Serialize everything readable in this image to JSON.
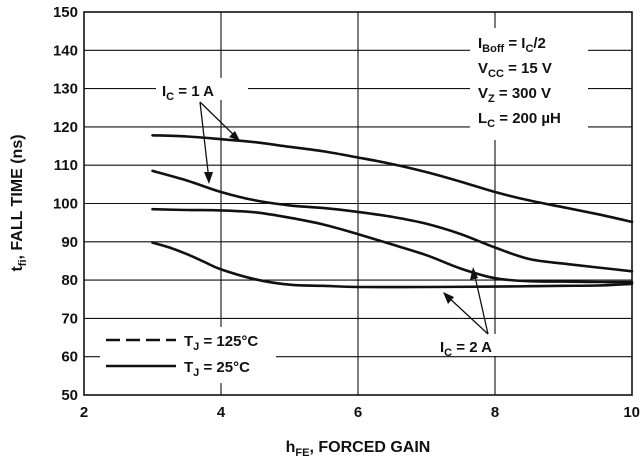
{
  "chart_data": {
    "type": "line",
    "title": "",
    "xlabel": {
      "main": "h",
      "sub": "FE",
      "rest": ", FORCED GAIN"
    },
    "ylabel": {
      "main": "t",
      "sub": "fi",
      "rest": ", FALL TIME (ns)"
    },
    "xlim": [
      2,
      10
    ],
    "ylim": [
      50,
      150
    ],
    "x_ticks": [
      "2",
      "4",
      "6",
      "8",
      "10"
    ],
    "y_ticks": [
      "50",
      "60",
      "70",
      "80",
      "90",
      "100",
      "110",
      "120",
      "130",
      "140",
      "150"
    ],
    "grid": true,
    "series": [
      {
        "style": "solid",
        "ic": "1 A",
        "x": [
          3,
          3.5,
          4,
          4.5,
          5,
          5.5,
          6,
          6.5,
          7,
          7.5,
          8,
          8.5,
          9,
          9.5,
          10
        ],
        "y": [
          117.8,
          117.5,
          116.8,
          116,
          114.8,
          113.6,
          112,
          110.3,
          108.2,
          105.7,
          103,
          100.8,
          99,
          97.2,
          95.2
        ]
      },
      {
        "style": "solid",
        "ic": "1 A",
        "x": [
          3,
          3.5,
          4,
          4.5,
          5,
          5.5,
          6,
          6.5,
          7,
          7.5,
          8,
          8.5,
          9,
          9.5,
          10
        ],
        "y": [
          108.5,
          106,
          103,
          100.8,
          99.5,
          98.8,
          97.8,
          96.5,
          94.7,
          92,
          88.5,
          85.5,
          84.3,
          83.3,
          82.3
        ]
      },
      {
        "style": "solid",
        "ic": "2 A",
        "x": [
          3,
          3.5,
          4,
          4.5,
          5,
          5.5,
          6,
          6.5,
          7,
          7.5,
          8,
          8.5,
          9,
          9.5,
          10
        ],
        "y": [
          98.5,
          98.3,
          98.2,
          97.7,
          96.3,
          94.5,
          92,
          89.3,
          86.5,
          83,
          80.5,
          79.7,
          79.6,
          79.5,
          79.5
        ]
      },
      {
        "style": "solid",
        "ic": "2 A",
        "x": [
          3,
          3.25,
          3.5,
          3.75,
          4,
          4.5,
          5,
          5.5,
          6,
          7,
          8,
          8.5,
          9,
          9.5,
          10
        ],
        "y": [
          89.8,
          88.5,
          86.8,
          84.8,
          82.8,
          80.2,
          78.8,
          78.5,
          78.2,
          78.2,
          78.3,
          78.4,
          78.5,
          78.6,
          79
        ]
      }
    ],
    "conditions": [
      {
        "main": "I",
        "sub": "Boff",
        "rest": " = I",
        "sub2": "C",
        "rest2": "/2"
      },
      {
        "main": "V",
        "sub": "CC",
        "rest": " = 15 V"
      },
      {
        "main": "V",
        "sub": "Z",
        "rest": " = 300 V"
      },
      {
        "main": "L",
        "sub": "C",
        "rest": " = 200 µH"
      }
    ],
    "curve_labels": [
      {
        "main": "I",
        "sub": "C",
        "rest": " = 1 A"
      },
      {
        "main": "I",
        "sub": "C",
        "rest": " = 2 A"
      }
    ],
    "legend": {
      "position": "bottom-left",
      "items": [
        {
          "style": "dashed",
          "main": "T",
          "sub": "J",
          "rest": " = 125°C"
        },
        {
          "style": "solid",
          "main": "T",
          "sub": "J",
          "rest": " = 25°C"
        }
      ]
    }
  }
}
